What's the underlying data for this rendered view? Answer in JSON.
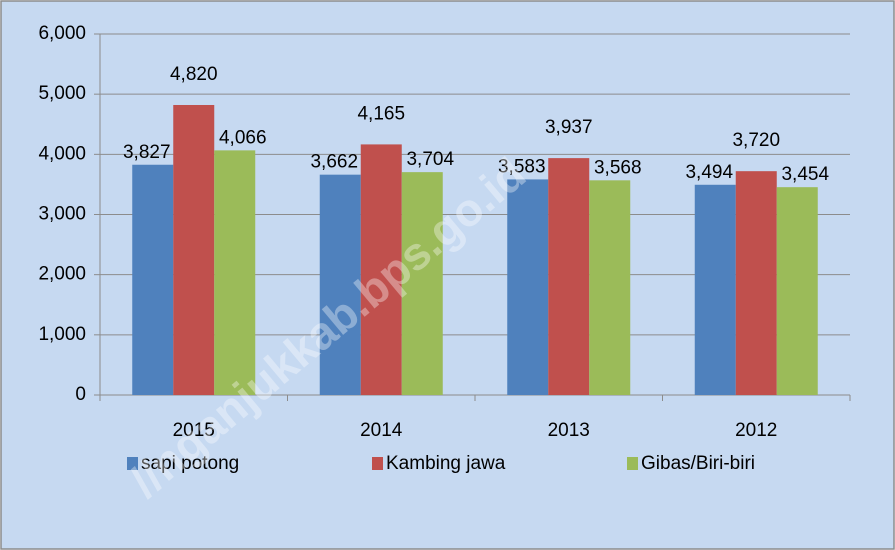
{
  "chart_data": {
    "type": "bar",
    "categories": [
      "2015",
      "2014",
      "2013",
      "2012"
    ],
    "series": [
      {
        "name": "sapi potong",
        "color": "#4f81bd",
        "values": [
          3827,
          3662,
          3583,
          3494
        ],
        "value_labels": [
          "3,827",
          "3,662",
          "3,583",
          "3,494"
        ]
      },
      {
        "name": "Kambing jawa",
        "color": "#c0504d",
        "values": [
          4820,
          4165,
          3937,
          3720
        ],
        "value_labels": [
          "4,820",
          "4,165",
          "3,937",
          "3,720"
        ]
      },
      {
        "name": "Gibas/Biri-biri",
        "color": "#9bbb59",
        "values": [
          4066,
          3704,
          3568,
          3454
        ],
        "value_labels": [
          "4,066",
          "3,704",
          "3,568",
          "3,454"
        ]
      }
    ],
    "ylim": [
      0,
      6000
    ],
    "yticks": [
      0,
      {
        "value": 1000,
        "label": "1,000"
      },
      {
        "value": 2000,
        "label": "2,000"
      },
      {
        "value": 3000,
        "label": "3,000"
      },
      {
        "value": 4000,
        "label": "4,000"
      },
      {
        "value": 5000,
        "label": "5,000"
      },
      {
        "value": 6000,
        "label": "6,000"
      }
    ],
    "grid": true,
    "legend": "bottom",
    "watermark": "//nganjukkab.bps.go.id"
  }
}
